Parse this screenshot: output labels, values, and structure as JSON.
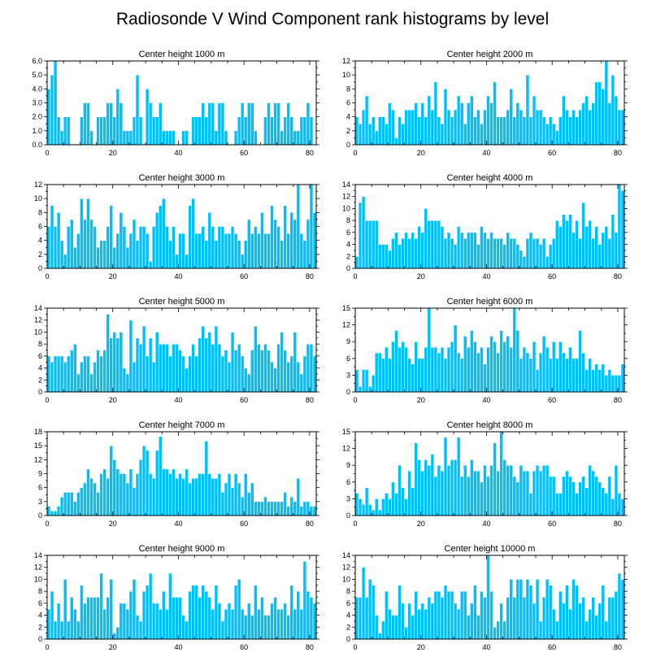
{
  "title": "Radiosonde V Wind Component rank histograms by level",
  "colors": {
    "bar": "#00bfff",
    "bar_edge": "#ffffff",
    "axis": "#000000"
  },
  "chart_data": [
    {
      "type": "bar",
      "title": "Center height 1000 m",
      "xlim": [
        0,
        82
      ],
      "ylim": [
        0,
        6.0
      ],
      "xticks": [
        0,
        20,
        40,
        60,
        80
      ],
      "yticks": [
        0,
        1,
        2,
        3,
        4,
        5,
        6
      ],
      "ytick_labels": [
        "0.0",
        "1.0",
        "2.0",
        "3.0",
        "4.0",
        "5.0",
        "6.0"
      ],
      "values": [
        4,
        5,
        6,
        2,
        1,
        2,
        2,
        0,
        0,
        0,
        2,
        3,
        3,
        1,
        0,
        2,
        2,
        2,
        3,
        3,
        2,
        4,
        3,
        1,
        1,
        1,
        2,
        5,
        2,
        0,
        4,
        3,
        2,
        2,
        3,
        1,
        1,
        1,
        1,
        0,
        0,
        1,
        1,
        0,
        2,
        2,
        2,
        3,
        2,
        3,
        3,
        1,
        3,
        3,
        1,
        0,
        0,
        1,
        2,
        3,
        2,
        3,
        3,
        1,
        0,
        0,
        2,
        3,
        2,
        3,
        3,
        1,
        2,
        3,
        2,
        1,
        1,
        2,
        2,
        3,
        2,
        0
      ]
    },
    {
      "type": "bar",
      "title": "Center height 2000 m",
      "xlim": [
        0,
        82
      ],
      "ylim": [
        0,
        12
      ],
      "xticks": [
        0,
        20,
        40,
        60,
        80
      ],
      "yticks": [
        0,
        2,
        4,
        6,
        8,
        10,
        12
      ],
      "ytick_labels": [
        "0",
        "2",
        "4",
        "6",
        "8",
        "10",
        "12"
      ],
      "values": [
        4,
        3,
        5,
        7,
        3,
        4,
        2,
        4,
        4,
        3,
        6,
        5,
        1,
        4,
        3,
        5,
        5,
        5,
        6,
        4,
        6,
        4,
        7,
        5,
        9,
        4,
        3,
        8,
        5,
        4,
        5,
        7,
        6,
        3,
        6,
        7,
        4,
        5,
        3,
        5,
        7,
        6,
        9,
        4,
        4,
        4,
        5,
        8,
        4,
        6,
        5,
        4,
        10,
        4,
        7,
        5,
        5,
        4,
        3,
        4,
        3,
        2,
        4,
        7,
        5,
        4,
        5,
        4,
        5,
        6,
        7,
        5,
        6,
        9,
        9,
        8,
        12,
        6,
        10,
        7,
        5,
        5
      ]
    },
    {
      "type": "bar",
      "title": "Center height 3000 m",
      "xlim": [
        0,
        82
      ],
      "ylim": [
        0,
        12
      ],
      "xticks": [
        0,
        20,
        40,
        60,
        80
      ],
      "yticks": [
        0,
        2,
        4,
        6,
        8,
        10,
        12
      ],
      "ytick_labels": [
        "0",
        "2",
        "4",
        "6",
        "8",
        "10",
        "12"
      ],
      "values": [
        6,
        9,
        6,
        8,
        4,
        2,
        6,
        7,
        3,
        5,
        10,
        7,
        10,
        7,
        6,
        3,
        4,
        4,
        6,
        9,
        3,
        5,
        8,
        6,
        3,
        5,
        7,
        4,
        6,
        6,
        5,
        1,
        6,
        8,
        9,
        10,
        6,
        4,
        6,
        2,
        5,
        5,
        2,
        9,
        10,
        5,
        5,
        6,
        4,
        8,
        6,
        4,
        6,
        6,
        5,
        5,
        6,
        5,
        4,
        2,
        4,
        7,
        5,
        6,
        5,
        8,
        5,
        5,
        9,
        7,
        6,
        4,
        9,
        5,
        8,
        7,
        12,
        5,
        4,
        7,
        12,
        8
      ]
    },
    {
      "type": "bar",
      "title": "Center height 4000 m",
      "xlim": [
        0,
        82
      ],
      "ylim": [
        0,
        14
      ],
      "xticks": [
        0,
        20,
        40,
        60,
        80
      ],
      "yticks": [
        0,
        2,
        4,
        6,
        8,
        10,
        12,
        14
      ],
      "ytick_labels": [
        "0",
        "2",
        "4",
        "6",
        "8",
        "10",
        "12",
        "14"
      ],
      "values": [
        2,
        11,
        12,
        8,
        8,
        8,
        8,
        4,
        4,
        4,
        3,
        5,
        6,
        4,
        5,
        6,
        5,
        6,
        5,
        7,
        6,
        10,
        8,
        8,
        8,
        8,
        7,
        5,
        6,
        5,
        4,
        7,
        6,
        5,
        6,
        6,
        6,
        4,
        7,
        6,
        5,
        6,
        5,
        5,
        5,
        4,
        6,
        5,
        5,
        4,
        3,
        2,
        5,
        6,
        5,
        5,
        4,
        5,
        2,
        4,
        5,
        8,
        7,
        9,
        8,
        9,
        6,
        8,
        5,
        11,
        7,
        8,
        5,
        7,
        4,
        6,
        7,
        5,
        9,
        6,
        14,
        13
      ]
    },
    {
      "type": "bar",
      "title": "Center height 5000 m",
      "xlim": [
        0,
        82
      ],
      "ylim": [
        0,
        14
      ],
      "xticks": [
        0,
        20,
        40,
        60,
        80
      ],
      "yticks": [
        0,
        2,
        4,
        6,
        8,
        10,
        12,
        14
      ],
      "ytick_labels": [
        "0",
        "2",
        "4",
        "6",
        "8",
        "10",
        "12",
        "14"
      ],
      "values": [
        6,
        5,
        6,
        6,
        6,
        5,
        6,
        7,
        8,
        3,
        5,
        6,
        6,
        3,
        5,
        7,
        6,
        7,
        13,
        9,
        10,
        9,
        10,
        4,
        3,
        12,
        5,
        9,
        8,
        11,
        6,
        9,
        5,
        10,
        8,
        8,
        8,
        6,
        8,
        8,
        7,
        6,
        4,
        6,
        8,
        6,
        9,
        11,
        9,
        10,
        8,
        11,
        8,
        6,
        7,
        5,
        10,
        7,
        8,
        6,
        4,
        3,
        7,
        11,
        8,
        7,
        8,
        7,
        5,
        4,
        8,
        10,
        7,
        5,
        6,
        10,
        5,
        3,
        6,
        8,
        8,
        6
      ]
    },
    {
      "type": "bar",
      "title": "Center height 6000 m",
      "xlim": [
        0,
        82
      ],
      "ylim": [
        0,
        15
      ],
      "xticks": [
        0,
        20,
        40,
        60,
        80
      ],
      "yticks": [
        0,
        3,
        6,
        9,
        12,
        15
      ],
      "ytick_labels": [
        "0",
        "3",
        "6",
        "9",
        "12",
        "15"
      ],
      "values": [
        4,
        1,
        4,
        4,
        1,
        3,
        7,
        7,
        6,
        8,
        6,
        9,
        11,
        8,
        9,
        8,
        6,
        5,
        9,
        6,
        6,
        8,
        15,
        8,
        8,
        7,
        8,
        6,
        8,
        9,
        12,
        7,
        6,
        10,
        8,
        11,
        9,
        7,
        8,
        5,
        8,
        10,
        9,
        7,
        11,
        9,
        10,
        8,
        15,
        11,
        6,
        8,
        7,
        6,
        9,
        4,
        7,
        10,
        8,
        6,
        9,
        6,
        9,
        7,
        6,
        8,
        6,
        6,
        11,
        7,
        4,
        6,
        4,
        5,
        4,
        5,
        3,
        4,
        3,
        3,
        3,
        5
      ]
    },
    {
      "type": "bar",
      "title": "Center height 7000 m",
      "xlim": [
        0,
        82
      ],
      "ylim": [
        0,
        18
      ],
      "xticks": [
        0,
        20,
        40,
        60,
        80
      ],
      "yticks": [
        0,
        3,
        6,
        9,
        12,
        15,
        18
      ],
      "ytick_labels": [
        "0",
        "3",
        "6",
        "9",
        "12",
        "15",
        "18"
      ],
      "values": [
        2,
        1,
        1,
        2,
        4,
        5,
        5,
        5,
        3,
        5,
        6,
        7,
        10,
        8,
        7,
        5,
        9,
        10,
        8,
        15,
        12,
        10,
        9,
        9,
        7,
        10,
        6,
        9,
        12,
        15,
        14,
        9,
        8,
        14,
        17,
        10,
        10,
        9,
        10,
        8,
        9,
        8,
        10,
        7,
        8,
        8,
        9,
        9,
        16,
        9,
        8,
        8,
        9,
        5,
        7,
        9,
        6,
        9,
        7,
        4,
        9,
        5,
        7,
        3,
        3,
        3,
        4,
        3,
        3,
        3,
        3,
        3,
        5,
        2,
        4,
        3,
        8,
        2,
        3,
        3,
        2,
        2
      ]
    },
    {
      "type": "bar",
      "title": "Center height 8000 m",
      "xlim": [
        0,
        82
      ],
      "ylim": [
        0,
        15
      ],
      "xticks": [
        0,
        20,
        40,
        60,
        80
      ],
      "yticks": [
        0,
        3,
        6,
        9,
        12,
        15
      ],
      "ytick_labels": [
        "0",
        "3",
        "6",
        "9",
        "12",
        "15"
      ],
      "values": [
        4,
        3,
        2,
        5,
        2,
        1,
        3,
        1,
        3,
        4,
        3,
        6,
        4,
        9,
        5,
        3,
        8,
        5,
        13,
        10,
        8,
        10,
        9,
        11,
        7,
        9,
        8,
        14,
        9,
        10,
        10,
        14,
        7,
        9,
        7,
        10,
        8,
        8,
        6,
        9,
        7,
        9,
        13,
        8,
        15,
        10,
        9,
        9,
        7,
        6,
        9,
        8,
        8,
        4,
        8,
        9,
        8,
        9,
        9,
        7,
        7,
        4,
        4,
        7,
        8,
        7,
        6,
        4,
        6,
        7,
        5,
        9,
        8,
        7,
        6,
        5,
        4,
        7,
        3,
        9,
        4,
        3
      ]
    },
    {
      "type": "bar",
      "title": "Center height 9000 m",
      "xlim": [
        0,
        82
      ],
      "ylim": [
        0,
        14
      ],
      "xticks": [
        0,
        20,
        40,
        60,
        80
      ],
      "yticks": [
        0,
        2,
        4,
        6,
        8,
        10,
        12,
        14
      ],
      "ytick_labels": [
        "0",
        "2",
        "4",
        "6",
        "8",
        "10",
        "12",
        "14"
      ],
      "values": [
        5,
        8,
        3,
        6,
        3,
        10,
        3,
        7,
        5,
        3,
        9,
        6,
        7,
        7,
        7,
        7,
        11,
        5,
        7,
        10,
        1,
        2,
        6,
        6,
        5,
        8,
        10,
        4,
        3,
        8,
        9,
        11,
        6,
        6,
        5,
        8,
        5,
        11,
        7,
        7,
        7,
        4,
        3,
        8,
        9,
        9,
        7,
        9,
        8,
        7,
        5,
        9,
        6,
        3,
        5,
        6,
        5,
        9,
        10,
        5,
        4,
        6,
        4,
        9,
        5,
        7,
        4,
        4,
        6,
        7,
        5,
        5,
        6,
        4,
        9,
        5,
        8,
        5,
        13,
        8,
        7,
        6
      ]
    },
    {
      "type": "bar",
      "title": "Center height 10000 m",
      "xlim": [
        0,
        82
      ],
      "ylim": [
        0,
        14
      ],
      "xticks": [
        0,
        20,
        40,
        60,
        80
      ],
      "yticks": [
        0,
        2,
        4,
        6,
        8,
        10,
        12,
        14
      ],
      "ytick_labels": [
        "0",
        "2",
        "4",
        "6",
        "8",
        "10",
        "12",
        "14"
      ],
      "values": [
        7,
        7,
        12,
        7,
        10,
        9,
        4,
        1,
        3,
        8,
        5,
        4,
        4,
        9,
        6,
        2,
        6,
        4,
        8,
        5,
        6,
        5,
        7,
        6,
        8,
        8,
        7,
        9,
        8,
        8,
        6,
        5,
        8,
        8,
        4,
        6,
        9,
        4,
        8,
        7,
        14,
        8,
        2,
        3,
        6,
        3,
        7,
        10,
        7,
        10,
        10,
        7,
        10,
        9,
        6,
        10,
        3,
        7,
        10,
        9,
        5,
        3,
        8,
        6,
        9,
        5,
        10,
        9,
        6,
        7,
        3,
        5,
        7,
        4,
        6,
        9,
        3,
        7,
        7,
        8,
        11,
        10
      ]
    }
  ]
}
